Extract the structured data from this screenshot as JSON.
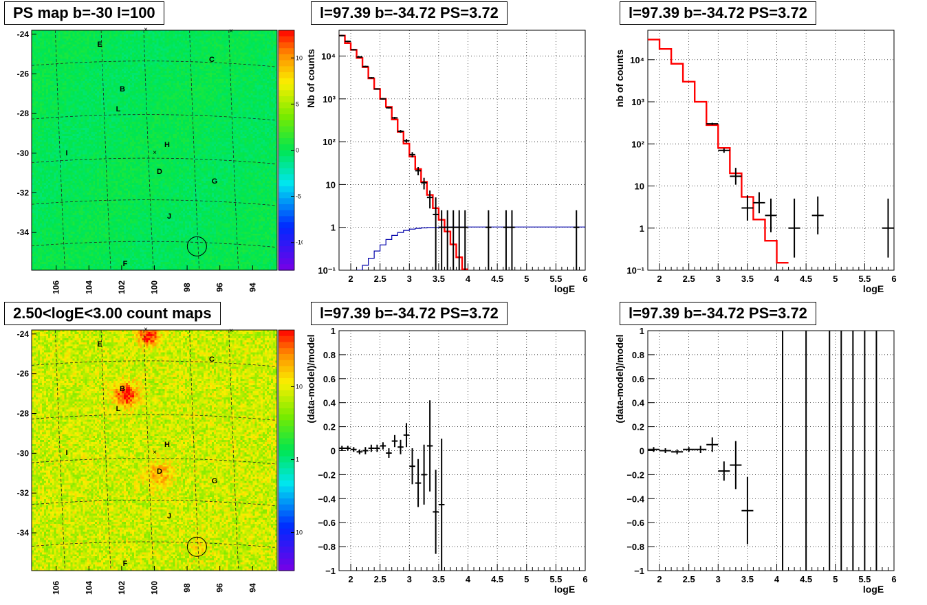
{
  "chart_data": [
    {
      "id": "map-ps",
      "type": "heatmap",
      "title": "PS map b=-30 l=100",
      "xlim": [
        107.5,
        92.5
      ],
      "ylim": [
        -35.9,
        -23.8
      ],
      "x_ticks": [
        "106",
        "104",
        "102",
        "100",
        "98",
        "96",
        "94"
      ],
      "y_ticks": [
        "-24",
        "-26",
        "-28",
        "-30",
        "-32",
        "-34"
      ],
      "colorbar": {
        "scale": "linear",
        "range": [
          -13,
          13
        ],
        "ticks": [
          "10",
          "5",
          "0",
          "-5",
          "-10"
        ]
      },
      "markers": [
        "E",
        "C",
        "B",
        "L",
        "H",
        "I",
        "D",
        "G",
        "J",
        "F"
      ],
      "circle": {
        "l": 97.4,
        "b": -34.7
      }
    },
    {
      "id": "spectrum-1",
      "type": "line",
      "title": "l=97.39 b=-34.72 PS=3.72",
      "xlabel": "logE",
      "ylabel": "Nb of counts",
      "xlim": [
        1.8,
        6.0
      ],
      "ylim": [
        0.1,
        40000
      ],
      "yscale": "log",
      "x_ticks": [
        "2",
        "2.5",
        "3",
        "3.5",
        "4",
        "4.5",
        "5",
        "5.5",
        "6"
      ],
      "y_ticks": [
        "10⁻¹",
        "1",
        "10",
        "10²",
        "10³",
        "10⁴"
      ],
      "grid": true,
      "series": [
        {
          "role": "model",
          "color": "#ff0000",
          "bins": [
            [
              1.8,
              1.9,
              30000
            ],
            [
              1.9,
              2.0,
              20000
            ],
            [
              2.0,
              2.1,
              14000
            ],
            [
              2.1,
              2.2,
              9000
            ],
            [
              2.2,
              2.3,
              5500
            ],
            [
              2.3,
              2.4,
              3000
            ],
            [
              2.4,
              2.5,
              1700
            ],
            [
              2.5,
              2.6,
              1000
            ],
            [
              2.6,
              2.7,
              650
            ],
            [
              2.7,
              2.8,
              330
            ],
            [
              2.8,
              2.9,
              170
            ],
            [
              2.9,
              3.0,
              90
            ],
            [
              3.0,
              3.1,
              45
            ],
            [
              3.1,
              3.2,
              23
            ],
            [
              3.2,
              3.3,
              11.5
            ],
            [
              3.3,
              3.4,
              5.7
            ],
            [
              3.4,
              3.5,
              2.8
            ],
            [
              3.5,
              3.6,
              1.5
            ],
            [
              3.6,
              3.7,
              0.8
            ],
            [
              3.7,
              3.8,
              0.4
            ],
            [
              3.8,
              3.9,
              0.2
            ],
            [
              3.9,
              4.0,
              0.105
            ]
          ]
        },
        {
          "role": "efficiency",
          "color": "#0000aa",
          "bins": [
            [
              2.1,
              2.2,
              0.1
            ],
            [
              2.2,
              2.3,
              0.13
            ],
            [
              2.3,
              2.4,
              0.19
            ],
            [
              2.4,
              2.5,
              0.28
            ],
            [
              2.5,
              2.6,
              0.39
            ],
            [
              2.6,
              2.7,
              0.52
            ],
            [
              2.7,
              2.8,
              0.65
            ],
            [
              2.8,
              2.9,
              0.76
            ],
            [
              2.9,
              3.0,
              0.85
            ],
            [
              3.0,
              3.1,
              0.91
            ],
            [
              3.1,
              3.2,
              0.95
            ],
            [
              3.2,
              3.3,
              0.97
            ],
            [
              3.3,
              3.5,
              0.99
            ],
            [
              3.5,
              6.0,
              1.02
            ]
          ]
        },
        {
          "role": "data",
          "color": "#000000",
          "points": [
            [
              1.85,
              30000,
              0.05,
              0
            ],
            [
              1.95,
              22000,
              0.05,
              0
            ],
            [
              2.05,
              14000,
              0.05,
              0
            ],
            [
              2.15,
              9500,
              0.05,
              0
            ],
            [
              2.25,
              5700,
              0.05,
              0
            ],
            [
              2.35,
              3100,
              0.05,
              0
            ],
            [
              2.45,
              1700,
              0.05,
              0
            ],
            [
              2.55,
              1000,
              0.05,
              0
            ],
            [
              2.65,
              620,
              0.05,
              0
            ],
            [
              2.75,
              360,
              0.05,
              0
            ],
            [
              2.85,
              175,
              0.05,
              0
            ],
            [
              2.95,
              105,
              0.05,
              0
            ],
            [
              3.05,
              50,
              0.05,
              0
            ],
            [
              3.15,
              21,
              0.05,
              0
            ],
            [
              3.25,
              11,
              0.05,
              0
            ],
            [
              3.35,
              5,
              0.05,
              0
            ],
            [
              3.45,
              2,
              0.05,
              0
            ],
            [
              3.55,
              1,
              0.05,
              0
            ],
            [
              3.65,
              1,
              0.05,
              0
            ],
            [
              3.75,
              1,
              0.05,
              0
            ],
            [
              3.85,
              1,
              0.05,
              0
            ],
            [
              3.95,
              1,
              0.05,
              0
            ],
            [
              4.35,
              1,
              0.05,
              0
            ],
            [
              4.65,
              1,
              0.05,
              0
            ],
            [
              4.75,
              1,
              0.05,
              0
            ],
            [
              5.85,
              1,
              0.05,
              0
            ]
          ]
        }
      ]
    },
    {
      "id": "spectrum-2",
      "type": "line",
      "title": "l=97.39 b=-34.72 PS=3.72",
      "xlabel": "logE",
      "ylabel": "nb of counts",
      "xlim": [
        1.8,
        6.0
      ],
      "ylim": [
        0.1,
        50000
      ],
      "yscale": "log",
      "x_ticks": [
        "2",
        "2.5",
        "3",
        "3.5",
        "4",
        "4.5",
        "5",
        "5.5",
        "6"
      ],
      "y_ticks": [
        "10⁻¹",
        "1",
        "10",
        "10²",
        "10³",
        "10⁴"
      ],
      "grid": true,
      "series": [
        {
          "role": "model",
          "color": "#ff0000",
          "bins": [
            [
              1.8,
              2.0,
              30000
            ],
            [
              2.0,
              2.2,
              18000
            ],
            [
              2.2,
              2.4,
              8000
            ],
            [
              2.4,
              2.6,
              3000
            ],
            [
              2.6,
              2.8,
              1000
            ],
            [
              2.8,
              3.0,
              280
            ],
            [
              3.0,
              3.2,
              80
            ],
            [
              3.2,
              3.4,
              20
            ],
            [
              3.4,
              3.6,
              5.5
            ],
            [
              3.6,
              3.8,
              1.6
            ],
            [
              3.8,
              4.0,
              0.5
            ],
            [
              4.0,
              4.2,
              0.15
            ]
          ]
        },
        {
          "role": "data",
          "color": "#000000",
          "points": [
            [
              2.9,
              300,
              0.1,
              0
            ],
            [
              3.1,
              70,
              0.1,
              0
            ],
            [
              3.3,
              17,
              0.1,
              0.2
            ],
            [
              3.5,
              3,
              0.1,
              0.3
            ],
            [
              3.7,
              4,
              0.1,
              0.25
            ],
            [
              3.9,
              2,
              0.1,
              0.4
            ],
            [
              4.3,
              1,
              0.1,
              0.7
            ],
            [
              4.7,
              2,
              0.1,
              0.45
            ],
            [
              5.9,
              1,
              0.1,
              0.7
            ]
          ]
        }
      ]
    },
    {
      "id": "map-counts",
      "type": "heatmap",
      "title": "2.50<logE<3.00 count maps",
      "xlim": [
        107.5,
        92.5
      ],
      "ylim": [
        -35.9,
        -23.8
      ],
      "x_ticks": [
        "106",
        "104",
        "102",
        "100",
        "98",
        "96",
        "94"
      ],
      "y_ticks": [
        "-24",
        "-26",
        "-28",
        "-30",
        "-32",
        "-34"
      ],
      "colorbar": {
        "scale": "log",
        "range": [
          0.03,
          60
        ],
        "ticks": [
          "10",
          "1",
          "10⁻¹"
        ]
      },
      "markers": [
        "E",
        "C",
        "B",
        "L",
        "H",
        "I",
        "D",
        "G",
        "J",
        "F"
      ],
      "circle": {
        "l": 97.4,
        "b": -34.7
      }
    },
    {
      "id": "residual-1",
      "type": "scatter",
      "title": "l=97.39 b=-34.72 PS=3.72",
      "xlabel": "logE",
      "ylabel": "(data-model)/model",
      "xlim": [
        1.8,
        6.0
      ],
      "ylim": [
        -1,
        1
      ],
      "x_ticks": [
        "2",
        "2.5",
        "3",
        "3.5",
        "4",
        "4.5",
        "5",
        "5.5",
        "6"
      ],
      "y_ticks": [
        "1",
        "0.8",
        "0.6",
        "0.4",
        "0.2",
        "0",
        "−0.2",
        "−0.4",
        "−0.6",
        "−0.8",
        "−1"
      ],
      "grid": true,
      "series": [
        {
          "role": "residual",
          "color": "#000000",
          "points": [
            [
              1.85,
              0.02,
              0.05,
              0.02
            ],
            [
              1.95,
              0.02,
              0.05,
              0.02
            ],
            [
              2.05,
              0.01,
              0.05,
              0.02
            ],
            [
              2.15,
              -0.01,
              0.05,
              0.02
            ],
            [
              2.25,
              0.0,
              0.05,
              0.03
            ],
            [
              2.35,
              0.02,
              0.05,
              0.03
            ],
            [
              2.45,
              0.02,
              0.05,
              0.03
            ],
            [
              2.55,
              0.04,
              0.05,
              0.03
            ],
            [
              2.65,
              -0.02,
              0.05,
              0.04
            ],
            [
              2.75,
              0.08,
              0.05,
              0.05
            ],
            [
              2.85,
              0.03,
              0.05,
              0.06
            ],
            [
              2.95,
              0.13,
              0.05,
              0.1
            ],
            [
              3.05,
              -0.13,
              0.05,
              0.15
            ],
            [
              3.15,
              -0.27,
              0.05,
              0.2
            ],
            [
              3.25,
              -0.2,
              0.05,
              0.25
            ],
            [
              3.35,
              0.04,
              0.05,
              0.38
            ],
            [
              3.45,
              -0.51,
              0.05,
              0.35
            ],
            [
              3.55,
              -0.45,
              0.05,
              0.55
            ]
          ]
        }
      ]
    },
    {
      "id": "residual-2",
      "type": "scatter",
      "title": "l=97.39 b=-34.72 PS=3.72",
      "xlabel": "logE",
      "ylabel": "(data-model)/model",
      "xlim": [
        1.8,
        6.0
      ],
      "ylim": [
        -1,
        1
      ],
      "x_ticks": [
        "2",
        "2.5",
        "3",
        "3.5",
        "4",
        "4.5",
        "5",
        "5.5",
        "6"
      ],
      "y_ticks": [
        "1",
        "0.8",
        "0.6",
        "0.4",
        "0.2",
        "0",
        "−0.2",
        "−0.4",
        "−0.6",
        "−0.8",
        "−1"
      ],
      "grid": true,
      "series": [
        {
          "role": "residual",
          "color": "#000000",
          "points": [
            [
              1.9,
              0.01,
              0.1,
              0.02
            ],
            [
              2.1,
              0.0,
              0.1,
              0.02
            ],
            [
              2.3,
              -0.01,
              0.1,
              0.02
            ],
            [
              2.5,
              0.01,
              0.1,
              0.02
            ],
            [
              2.7,
              0.01,
              0.1,
              0.03
            ],
            [
              2.9,
              0.05,
              0.1,
              0.06
            ],
            [
              3.1,
              -0.17,
              0.1,
              0.08
            ],
            [
              3.3,
              -0.12,
              0.1,
              0.2
            ],
            [
              3.5,
              -0.5,
              0.1,
              0.28
            ],
            [
              4.1,
              2,
              0.1,
              3
            ],
            [
              4.5,
              2,
              0.1,
              3
            ],
            [
              4.9,
              2,
              0.1,
              3
            ],
            [
              5.1,
              2,
              0.1,
              3
            ],
            [
              5.3,
              2,
              0.1,
              3
            ],
            [
              5.5,
              2,
              0.1,
              3
            ],
            [
              5.7,
              2,
              0.1,
              3
            ]
          ]
        }
      ]
    }
  ]
}
